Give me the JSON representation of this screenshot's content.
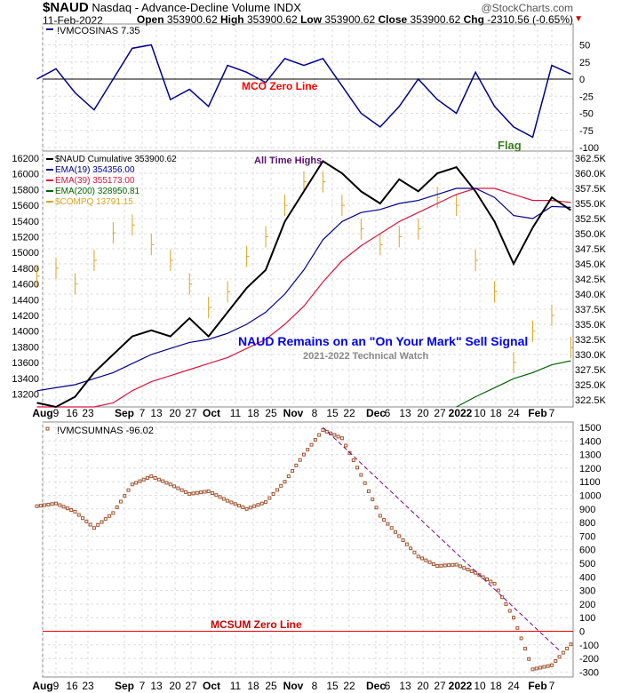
{
  "header": {
    "symbol": "$NAUD",
    "name": "Nasdaq - Advance-Decline Volume",
    "exchange": "INDX",
    "date": "11-Feb-2022",
    "watermark": "@StockCharts.com",
    "open_label": "Open",
    "open": "353900.62",
    "high_label": "High",
    "high": "353900.62",
    "low_label": "Low",
    "low": "353900.62",
    "close_label": "Close",
    "close": "353900.62",
    "chg_label": "Chg",
    "chg": "-2310.56 (-0.65%)"
  },
  "colors": {
    "naud": "#000000",
    "ema19": "#00008b",
    "ema39": "#dc143c",
    "ema200": "#006400",
    "compq": "#daa520",
    "mco": "#00008b",
    "mcsum": "#a0522d",
    "trend": "#800080",
    "zero": "#ff0000"
  },
  "chart_data": [
    {
      "type": "line",
      "title": "!VMCOSINAS",
      "legend": "!VMCOSINAS 7.35",
      "yticks": [
        50,
        25,
        0,
        -25,
        -50,
        -75,
        -100
      ],
      "ylim": [
        -110,
        70
      ],
      "annotations": [
        "MCO Zero Line",
        "Flag"
      ],
      "x": [
        "Aug 2",
        "Aug 9",
        "Aug 16",
        "Aug 23",
        "Aug 30",
        "Sep 7",
        "Sep 13",
        "Sep 20",
        "Sep 27",
        "Oct 4",
        "Oct 11",
        "Oct 18",
        "Oct 25",
        "Nov 1",
        "Nov 8",
        "Nov 15",
        "Nov 22",
        "Nov 29",
        "Dec 6",
        "Dec 13",
        "Dec 20",
        "Dec 27",
        "Jan 3",
        "Jan 10",
        "Jan 18",
        "Jan 24",
        "Jan 31",
        "Feb 7",
        "Feb 11"
      ],
      "values": [
        0,
        15,
        -20,
        -45,
        0,
        45,
        50,
        -30,
        -15,
        -40,
        20,
        10,
        -5,
        30,
        20,
        30,
        -10,
        -50,
        -70,
        -40,
        0,
        -30,
        -50,
        10,
        -40,
        -70,
        -85,
        20,
        7.35
      ]
    },
    {
      "type": "line",
      "title": "$NAUD Cumulative",
      "annotations": [
        "All Time Highs",
        "NAUD Remains on an \"On Your Mark\" Sell Signal",
        "2021-2022 Technical Watch"
      ],
      "left_yticks": [
        16200,
        16000,
        15800,
        15600,
        15400,
        15200,
        15000,
        14800,
        14600,
        14400,
        14200,
        14000,
        13800,
        13600,
        13400,
        13200
      ],
      "right_yticks": [
        "362.5K",
        "360.0K",
        "357.5K",
        "355.0K",
        "352.5K",
        "350.0K",
        "347.5K",
        "345.0K",
        "342.5K",
        "340.0K",
        "337.5K",
        "335.0K",
        "332.5K",
        "330.0K",
        "327.5K",
        "325.0K",
        "322.5K"
      ],
      "series": [
        {
          "name": "$NAUD Cumulative",
          "legend": "$NAUD Cumulative 353900.62",
          "axis": "right",
          "unit": "K",
          "values": [
            322,
            321,
            323,
            327,
            330,
            333,
            334,
            333,
            336,
            333,
            337,
            341,
            344,
            352,
            357,
            362,
            360,
            357,
            355,
            359,
            357,
            360,
            361,
            357,
            352,
            345,
            351,
            356,
            353.9
          ]
        },
        {
          "name": "EMA(19)",
          "legend": "EMA(19) 354356.00",
          "axis": "right",
          "unit": "K",
          "values": [
            324,
            324.5,
            325,
            326,
            327,
            328.5,
            330,
            331,
            332,
            332.5,
            333.5,
            335,
            337,
            340,
            344,
            349,
            352,
            353.5,
            354,
            355,
            355.5,
            356.5,
            357.5,
            357.5,
            356,
            353,
            352.5,
            354.5,
            354.36
          ]
        },
        {
          "name": "EMA(39)",
          "legend": "EMA(39) 355173.00",
          "axis": "right",
          "unit": "K",
          "values": [
            316,
            317.5,
            319,
            320.5,
            322,
            324,
            325.5,
            326.5,
            327.5,
            328.5,
            329.5,
            331,
            332.5,
            335,
            338,
            342,
            345.5,
            348,
            350,
            352,
            353.5,
            355,
            356.5,
            357.5,
            357.5,
            356.5,
            355.5,
            355.5,
            355.17
          ]
        },
        {
          "name": "EMA(200)",
          "legend": "EMA(200) 328950.81",
          "axis": "right",
          "unit": "K",
          "values": [
            null,
            null,
            null,
            null,
            null,
            null,
            null,
            null,
            null,
            null,
            null,
            null,
            null,
            null,
            null,
            null,
            null,
            null,
            null,
            null,
            null,
            null,
            321,
            323,
            324.5,
            326,
            327,
            328.3,
            328.95
          ]
        },
        {
          "name": "$COMPQ",
          "legend": "$COMPQ 13791.15",
          "axis": "left",
          "values": [
            14700,
            14800,
            14600,
            14900,
            15250,
            15350,
            15100,
            14900,
            14600,
            14300,
            14500,
            14950,
            15200,
            15600,
            15900,
            15900,
            15600,
            15300,
            15100,
            15200,
            15300,
            15700,
            15600,
            14900,
            14500,
            13600,
            14000,
            14200,
            13791.15
          ]
        }
      ]
    },
    {
      "type": "scatter",
      "title": "!VMCSUMNAS",
      "legend": "!VMCSUMNAS -96.02",
      "yticks": [
        1500,
        1400,
        1300,
        1200,
        1100,
        1000,
        900,
        800,
        700,
        600,
        500,
        400,
        300,
        200,
        100,
        0,
        -100,
        -200,
        -300
      ],
      "annotations": [
        "MCSUM Zero Line"
      ],
      "trendline": {
        "from": [
          "Nov 15",
          1500
        ],
        "to": [
          "Feb 7",
          -150
        ]
      },
      "values": [
        920,
        940,
        880,
        760,
        870,
        1080,
        1140,
        1080,
        1010,
        1030,
        960,
        900,
        950,
        1100,
        1300,
        1480,
        1420,
        1150,
        850,
        700,
        550,
        480,
        490,
        430,
        350,
        100,
        -280,
        -250,
        -96.02
      ]
    }
  ],
  "date_axis": [
    "Aug",
    "9",
    "16",
    "23",
    "Sep",
    "7",
    "13",
    "20",
    "27",
    "Oct",
    "11",
    "18",
    "25",
    "Nov",
    "8",
    "15",
    "22",
    "Dec",
    "6",
    "13",
    "20",
    "27",
    "2022",
    "10",
    "18",
    "24",
    "Feb",
    "7"
  ]
}
